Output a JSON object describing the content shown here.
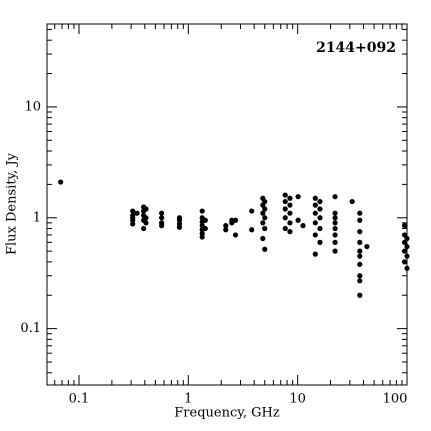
{
  "chart_data": {
    "type": "scatter",
    "title": "2144+092",
    "x_label": "Frequency, GHz",
    "y_label": "Flux Density, Jy",
    "log_x": true,
    "log_y": true,
    "color": "#000000",
    "xlim": [
      0.051,
      100
    ],
    "ylim": [
      0.031,
      56
    ],
    "xticks": [
      0.1,
      1,
      10,
      100
    ],
    "yticks": [
      0.1,
      1,
      10
    ],
    "x": [
      0.068,
      0.31,
      0.31,
      0.31,
      0.31,
      0.31,
      0.34,
      0.39,
      0.39,
      0.39,
      0.39,
      0.39,
      0.41,
      0.41,
      0.41,
      0.57,
      0.57,
      0.57,
      0.57,
      0.83,
      0.83,
      0.83,
      0.83,
      1.34,
      1.34,
      1.34,
      1.34,
      1.34,
      1.34,
      1.34,
      1.43,
      1.43,
      2.2,
      2.2,
      2.5,
      2.5,
      2.7,
      2.7,
      3.8,
      3.8,
      4.8,
      4.8,
      4.8,
      4.8,
      4.8,
      5.0,
      5.0,
      5.0,
      5.0,
      5.0,
      7.7,
      7.7,
      7.7,
      7.7,
      7.7,
      8.5,
      8.5,
      8.5,
      8.5,
      8.5,
      10.1,
      10.1,
      11.2,
      14.5,
      14.5,
      14.5,
      14.5,
      14.5,
      14.5,
      16,
      16,
      16,
      16,
      16,
      22,
      22,
      22,
      22,
      22,
      22,
      22,
      22,
      31.5,
      37,
      37,
      37,
      37,
      37,
      37,
      37,
      37,
      37,
      37,
      43,
      95,
      95,
      95,
      95,
      95,
      100,
      100,
      100,
      100
    ],
    "y": [
      2.1,
      1.15,
      1.05,
      0.95,
      0.88,
      1.0,
      1.1,
      1.25,
      1.15,
      1.05,
      0.95,
      0.8,
      1.2,
      1.0,
      0.9,
      1.1,
      1.0,
      0.9,
      0.85,
      1.0,
      0.95,
      0.88,
      0.82,
      1.15,
      1.0,
      0.92,
      0.85,
      0.78,
      0.72,
      0.67,
      0.95,
      0.8,
      0.85,
      0.78,
      0.95,
      0.9,
      0.95,
      0.7,
      1.15,
      0.78,
      1.5,
      1.3,
      1.1,
      0.9,
      0.65,
      1.4,
      1.2,
      1.0,
      0.8,
      0.52,
      1.6,
      1.4,
      1.2,
      1.0,
      0.8,
      1.5,
      1.3,
      1.1,
      0.9,
      0.75,
      1.55,
      0.95,
      0.85,
      1.5,
      1.3,
      1.1,
      0.9,
      0.7,
      0.47,
      1.4,
      1.2,
      1.0,
      0.8,
      0.6,
      1.55,
      1.1,
      1.0,
      0.9,
      0.8,
      0.7,
      0.6,
      0.5,
      1.4,
      1.1,
      0.95,
      0.75,
      0.6,
      0.5,
      0.45,
      0.38,
      0.3,
      0.27,
      0.2,
      0.55,
      0.85,
      0.7,
      0.6,
      0.5,
      0.4,
      0.65,
      0.55,
      0.45,
      0.35
    ]
  }
}
